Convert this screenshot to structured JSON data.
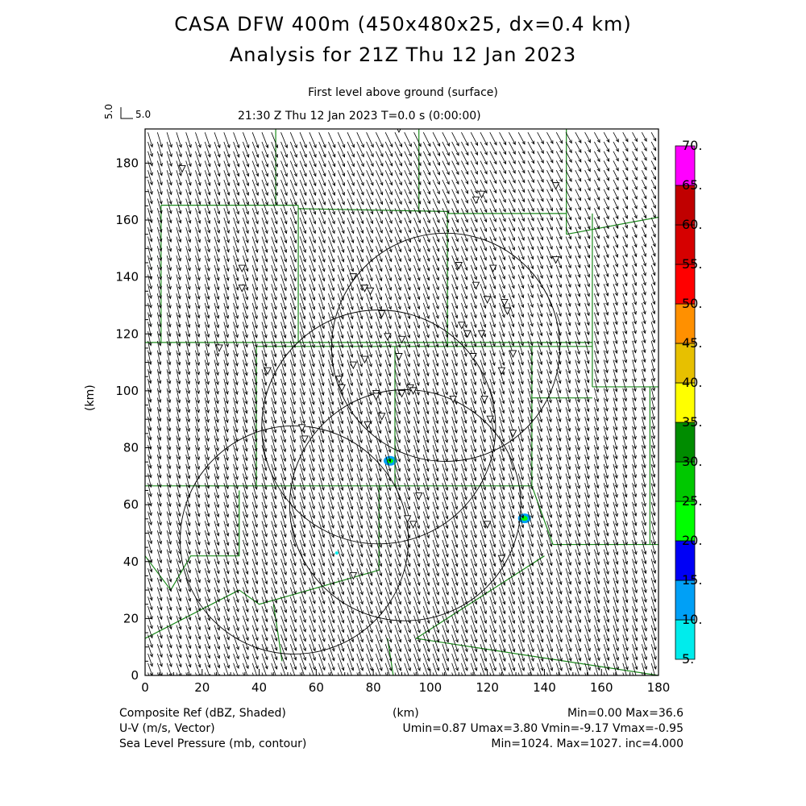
{
  "title_line1": "CASA DFW 400m (450x480x25, dx=0.4 km)",
  "title_line2": "Analysis for 21Z Thu 12 Jan 2023",
  "level_label": "First level above ground (surface)",
  "time_label": "21:30 Z Thu 12 Jan 2023    T=0.0 s (0:00:00)",
  "vector_key": {
    "vertical": "5.0",
    "horizontal": "5.0"
  },
  "footer": {
    "left": [
      "Composite Ref (dBZ, Shaded)",
      "U-V (m/s, Vector)",
      "Sea Level Pressure (mb, contour)"
    ],
    "center": "(km)",
    "right": [
      "Min=0.00 Max=36.6",
      "Umin=0.87 Umax=3.80 Vmin=-9.17 Vmax=-0.95",
      "Min=1024. Max=1027. inc=4.000"
    ]
  },
  "chart_data": {
    "type": "heatmap",
    "title": "CASA DFW 400m (450x480x25, dx=0.4 km) Analysis for 21Z Thu 12 Jan 2023",
    "xlabel": "(km)",
    "ylabel": "(km)",
    "xlim": [
      0,
      180
    ],
    "ylim": [
      0,
      192
    ],
    "xticks": [
      "0",
      "20",
      "40",
      "60",
      "80",
      "100",
      "120",
      "140",
      "160",
      "180"
    ],
    "yticks": [
      "0",
      "20",
      "40",
      "60",
      "80",
      "100",
      "120",
      "140",
      "160",
      "180"
    ],
    "colorbar": {
      "levels": [
        "5.",
        "10.",
        "15.",
        "20.",
        "25.",
        "30.",
        "35.",
        "40.",
        "45.",
        "50.",
        "55.",
        "60.",
        "65.",
        "70."
      ],
      "colors": [
        "#00ecec",
        "#00a0f6",
        "#0000f6",
        "#00ff00",
        "#00c800",
        "#008c00",
        "#ffff00",
        "#e7c000",
        "#ff9000",
        "#ff0000",
        "#d60000",
        "#c00000",
        "#ff00ff"
      ]
    },
    "wind": {
      "umin": 0.87,
      "umax": 3.8,
      "vmin": -9.17,
      "vmax": -0.95,
      "unit": "m/s"
    },
    "reflectivity_cells": [
      {
        "x": 85.9,
        "y": 75.4,
        "dbz": 20
      },
      {
        "x": 133,
        "y": 55.2,
        "dbz": 20
      },
      {
        "x": 67.2,
        "y": 43,
        "dbz": 6
      }
    ],
    "radar_rings": [
      {
        "x": 105.4,
        "y": 115.3,
        "r": 40
      },
      {
        "x": 81.9,
        "y": 87.3,
        "r": 41
      },
      {
        "x": 52.3,
        "y": 47.6,
        "r": 40
      },
      {
        "x": 91.2,
        "y": 59.8,
        "r": 40.5
      }
    ],
    "stations": [
      [
        13,
        178
      ],
      [
        34,
        143
      ],
      [
        34,
        136
      ],
      [
        26,
        115
      ],
      [
        73,
        140
      ],
      [
        77,
        136
      ],
      [
        79,
        135
      ],
      [
        83,
        127
      ],
      [
        85,
        119
      ],
      [
        90,
        118
      ],
      [
        77,
        111
      ],
      [
        89,
        112
      ],
      [
        110,
        144
      ],
      [
        116,
        137
      ],
      [
        122,
        143
      ],
      [
        120,
        132
      ],
      [
        126,
        131
      ],
      [
        127,
        128
      ],
      [
        111,
        123
      ],
      [
        113,
        120
      ],
      [
        118,
        120
      ],
      [
        115,
        112
      ],
      [
        129,
        113
      ],
      [
        125,
        107
      ],
      [
        119,
        97
      ],
      [
        108,
        97
      ],
      [
        68,
        104
      ],
      [
        69,
        101
      ],
      [
        73,
        109
      ],
      [
        81,
        99
      ],
      [
        81,
        98
      ],
      [
        90,
        99
      ],
      [
        93,
        101
      ],
      [
        94,
        100
      ],
      [
        83,
        91
      ],
      [
        78,
        88
      ],
      [
        55,
        87
      ],
      [
        56,
        83
      ],
      [
        121,
        90
      ],
      [
        129,
        85
      ],
      [
        96,
        63
      ],
      [
        92,
        55
      ],
      [
        94,
        53
      ],
      [
        120,
        53
      ],
      [
        125,
        41
      ],
      [
        73,
        35
      ],
      [
        89,
        192
      ],
      [
        118,
        169
      ],
      [
        144,
        146
      ],
      [
        144,
        172
      ],
      [
        43,
        107
      ],
      [
        116,
        167
      ]
    ],
    "counties": [
      [
        [
          45.8,
          192
        ],
        [
          45.8,
          165.2
        ]
      ],
      [
        [
          5.6,
          165.2
        ],
        [
          53.7,
          165.2
        ]
      ],
      [
        [
          5.6,
          165.2
        ],
        [
          5.6,
          117
        ]
      ],
      [
        [
          0,
          117
        ],
        [
          156.8,
          117
        ]
      ],
      [
        [
          53.7,
          165.2
        ],
        [
          53.7,
          117
        ]
      ],
      [
        [
          96,
          192
        ],
        [
          96,
          163
        ]
      ],
      [
        [
          53.7,
          164
        ],
        [
          106,
          163
        ]
      ],
      [
        [
          106,
          163
        ],
        [
          106,
          115.6
        ]
      ],
      [
        [
          106,
          162.3
        ],
        [
          147.7,
          162.3
        ]
      ],
      [
        [
          147.7,
          192
        ],
        [
          147.7,
          155
        ]
      ],
      [
        [
          147.7,
          155
        ],
        [
          180,
          161
        ]
      ],
      [
        [
          39,
          115.6
        ],
        [
          156.8,
          115.6
        ]
      ],
      [
        [
          87.6,
          115.6
        ],
        [
          87.6,
          66.6
        ]
      ],
      [
        [
          39,
          115.6
        ],
        [
          39,
          66.6
        ]
      ],
      [
        [
          0,
          66.6
        ],
        [
          135.6,
          66.6
        ]
      ],
      [
        [
          135.6,
          115.6
        ],
        [
          135.6,
          66.6
        ]
      ],
      [
        [
          156.8,
          162.3
        ],
        [
          156.8,
          101.4
        ]
      ],
      [
        [
          156.8,
          101.4
        ],
        [
          180,
          101.4
        ]
      ],
      [
        [
          135.6,
          97.5
        ],
        [
          156.8,
          97.5
        ]
      ],
      [
        [
          177,
          101.4
        ],
        [
          177,
          46
        ]
      ],
      [
        [
          135.6,
          66.6
        ],
        [
          143,
          46
        ]
      ],
      [
        [
          143,
          46
        ],
        [
          180,
          46
        ]
      ],
      [
        [
          0,
          42
        ],
        [
          9,
          30
        ],
        [
          16,
          42
        ],
        [
          33,
          42
        ],
        [
          33,
          65
        ]
      ],
      [
        [
          33,
          30
        ],
        [
          40,
          25
        ],
        [
          82,
          37
        ],
        [
          82,
          66.6
        ]
      ],
      [
        [
          0,
          13
        ],
        [
          33,
          30
        ]
      ],
      [
        [
          48,
          5
        ],
        [
          47,
          12
        ],
        [
          45,
          25
        ]
      ],
      [
        [
          95,
          13
        ],
        [
          140,
          42
        ]
      ],
      [
        [
          95,
          13
        ],
        [
          180,
          0
        ]
      ],
      [
        [
          85,
          13
        ],
        [
          87,
          0
        ]
      ]
    ]
  }
}
